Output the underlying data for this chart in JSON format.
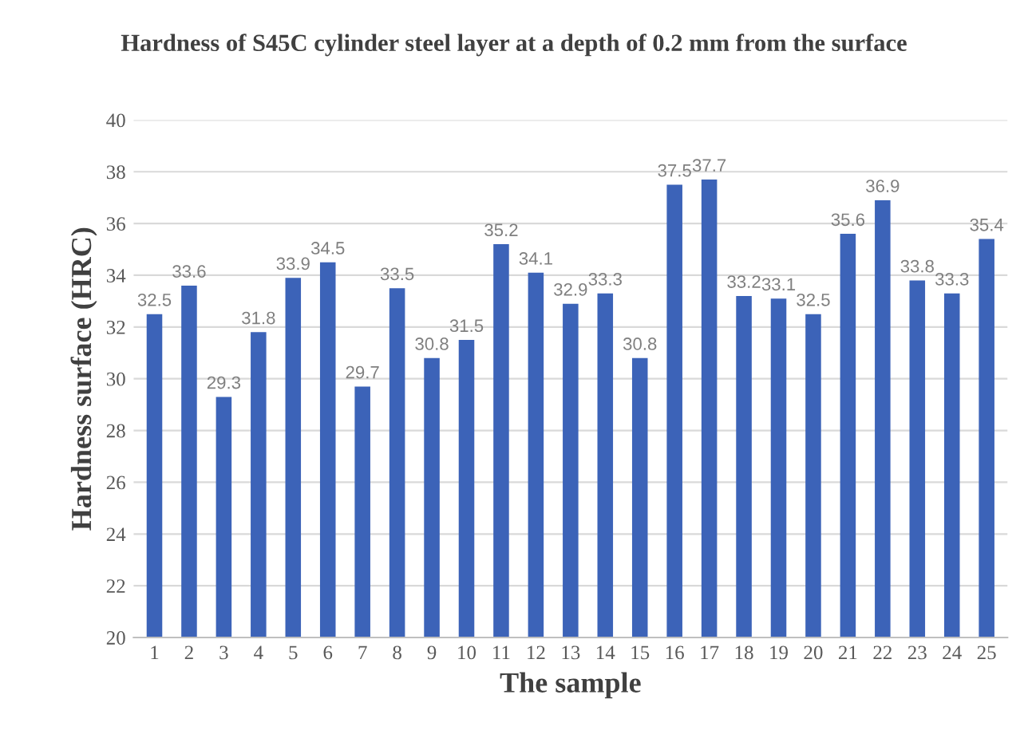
{
  "chart_data": {
    "type": "bar",
    "title": "Hardness of S45C cylinder steel layer at a depth of 0.2 mm from the surface",
    "xlabel": "The sample",
    "ylabel": "Hardness surface (HRC)",
    "categories": [
      "1",
      "2",
      "3",
      "4",
      "5",
      "6",
      "7",
      "8",
      "9",
      "10",
      "11",
      "12",
      "13",
      "14",
      "15",
      "16",
      "17",
      "18",
      "19",
      "20",
      "21",
      "22",
      "23",
      "24",
      "25"
    ],
    "values": [
      32.5,
      33.6,
      29.3,
      31.8,
      33.9,
      34.5,
      29.7,
      33.5,
      30.8,
      31.5,
      35.2,
      34.1,
      32.9,
      33.3,
      30.8,
      37.5,
      37.7,
      33.2,
      33.1,
      32.5,
      35.6,
      36.9,
      33.8,
      33.3,
      35.4
    ],
    "color": "#3c63b8",
    "data_labels": true,
    "ylim": [
      20,
      40
    ],
    "yticks": [
      20,
      22,
      24,
      26,
      28,
      30,
      32,
      34,
      36,
      38,
      40
    ],
    "grid": "y"
  }
}
